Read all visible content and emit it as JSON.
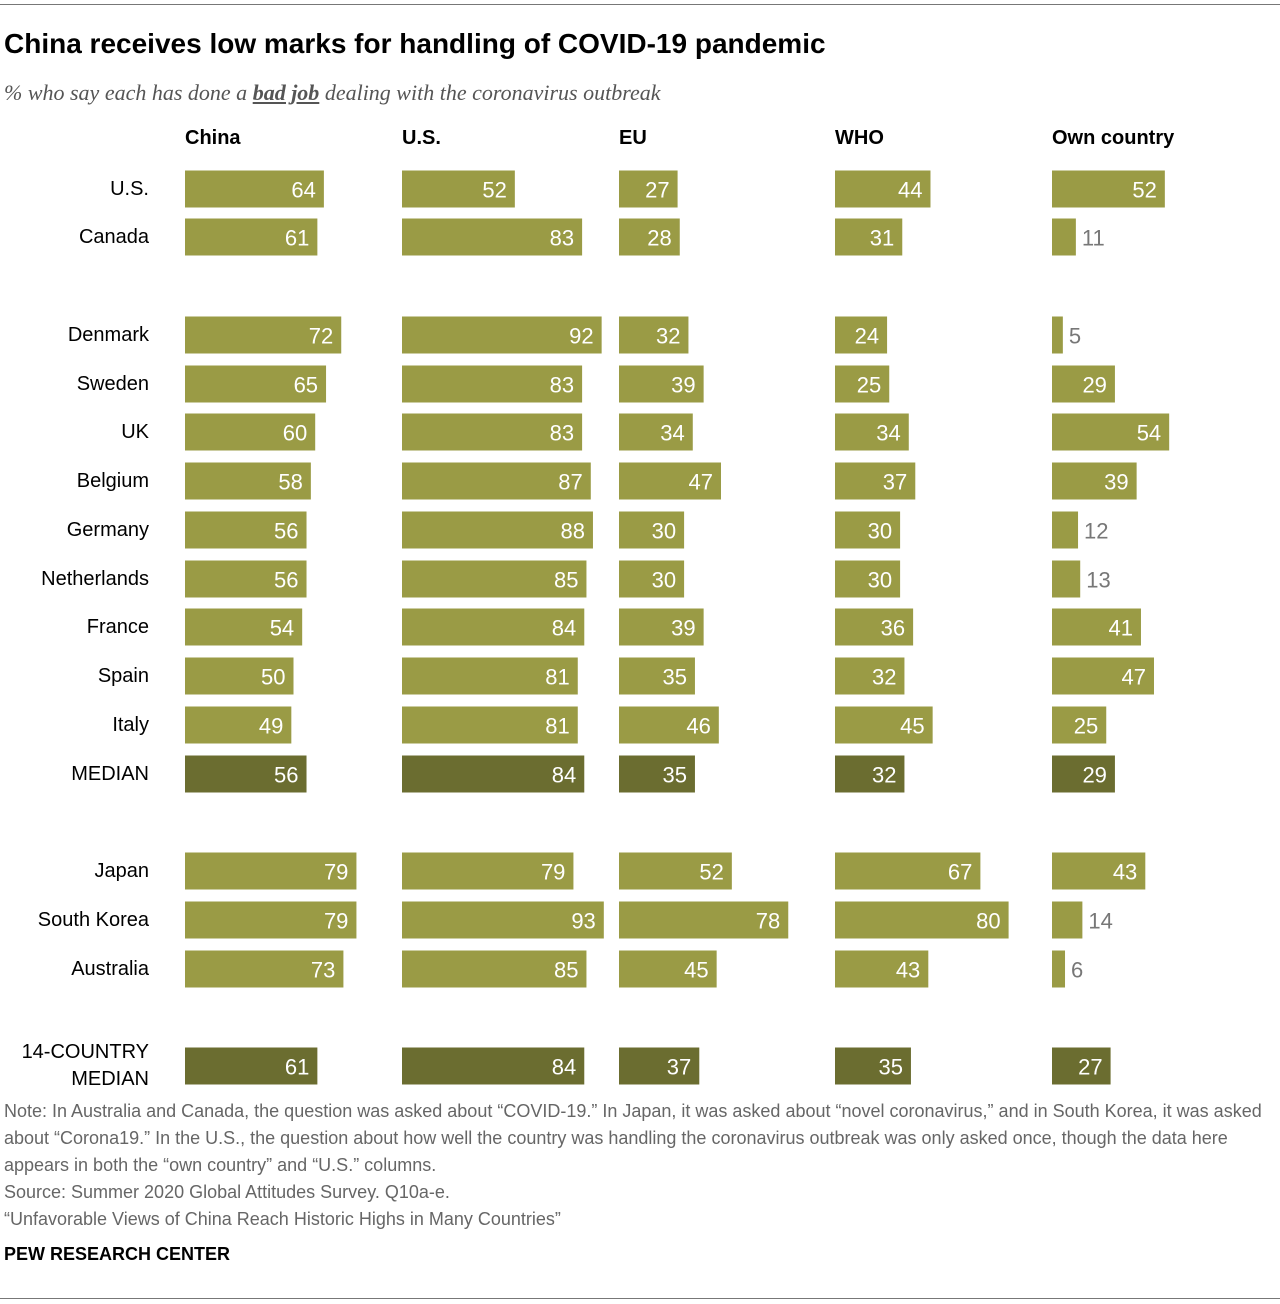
{
  "chart_data": {
    "type": "bar",
    "title": "China receives low marks for handling of COVID-19 pandemic",
    "subtitle": [
      "% who say each has done a ",
      "bad job",
      " dealing with the coronavirus outbreak"
    ],
    "categories": [
      "U.S.",
      "Canada",
      "Denmark",
      "Sweden",
      "UK",
      "Belgium",
      "Germany",
      "Netherlands",
      "France",
      "Spain",
      "Italy",
      "MEDIAN",
      "Japan",
      "South Korea",
      "Australia",
      "14-COUNTRY MEDIAN"
    ],
    "bar_colors": [
      "#9a9b45",
      "#9a9b45",
      "#9a9b45",
      "#9a9b45",
      "#9a9b45",
      "#9a9b45",
      "#9a9b45",
      "#9a9b45",
      "#9a9b45",
      "#9a9b45",
      "#9a9b45",
      "#6b6d30",
      "#9a9b45",
      "#9a9b45",
      "#9a9b45",
      "#6b6d30"
    ],
    "xlim": [
      0,
      100
    ],
    "series": [
      {
        "name": "China",
        "values": [
          64,
          61,
          72,
          65,
          60,
          58,
          56,
          56,
          54,
          50,
          49,
          56,
          79,
          79,
          73,
          61
        ]
      },
      {
        "name": "U.S.",
        "values": [
          52,
          83,
          92,
          83,
          83,
          87,
          88,
          85,
          84,
          81,
          81,
          84,
          79,
          93,
          85,
          84
        ]
      },
      {
        "name": "EU",
        "values": [
          27,
          28,
          32,
          39,
          34,
          47,
          30,
          30,
          39,
          35,
          46,
          35,
          52,
          78,
          45,
          37
        ]
      },
      {
        "name": "WHO",
        "values": [
          44,
          31,
          24,
          25,
          34,
          37,
          30,
          30,
          36,
          32,
          45,
          32,
          67,
          80,
          43,
          35
        ]
      },
      {
        "name": "Own country",
        "values": [
          52,
          11,
          5,
          29,
          54,
          39,
          12,
          13,
          41,
          47,
          25,
          29,
          43,
          14,
          6,
          27
        ]
      }
    ],
    "note": "Note: In Australia and Canada, the question was asked about “COVID-19.” In Japan, it was asked about “novel coronavirus,” and in South Korea, it was asked about “Corona19.” In the U.S., the question about how well the country was handling the coronavirus outbreak was only asked once, though the data here appears in both the “own country” and “U.S.” columns.",
    "source": "Source: Summer 2020 Global Attitudes Survey. Q10a-e.",
    "report": "“Unfavorable Views of China Reach Historic Highs in Many Countries”",
    "credit": "PEW RESEARCH CENTER"
  }
}
